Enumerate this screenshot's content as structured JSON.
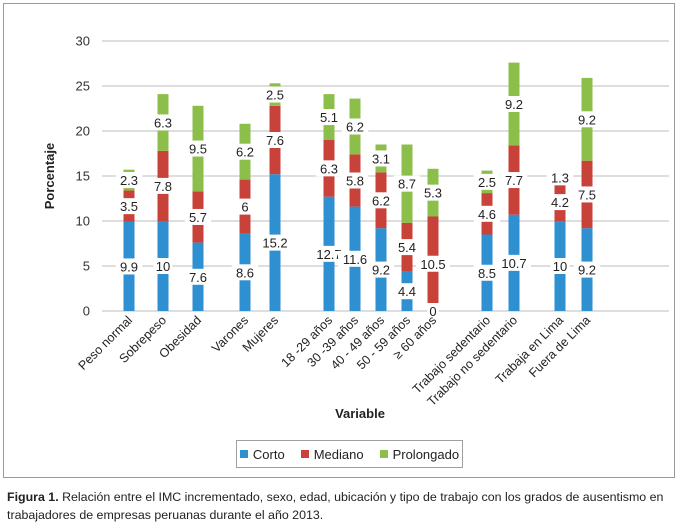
{
  "chart_data": {
    "type": "bar",
    "stacked": true,
    "categories": [
      "Peso normal",
      "Sobrepeso",
      "Obesidad",
      "Varones",
      "Mujeres",
      "18 -29 años",
      "30 -39 años",
      "40 - 49 años",
      "50 - 59 años",
      "≥ 60 años",
      "Trabajo sedentario",
      "Trabajo no sedentario",
      "Trabaja en Lima",
      "Fuera de Lima"
    ],
    "series": [
      {
        "name": "Corto",
        "color": "#2e8fd1",
        "values": [
          9.9,
          10,
          7.6,
          8.6,
          15.2,
          12.7,
          11.6,
          9.2,
          4.4,
          0,
          8.5,
          10.7,
          10,
          9.2
        ],
        "labels": [
          "9.9",
          "10",
          "7.6",
          "8.6",
          "15.2",
          "12.7",
          "11.6",
          "9.2",
          "4.4",
          "0",
          "8.5",
          "10.7",
          "10",
          "9.2"
        ]
      },
      {
        "name": "Mediano",
        "color": "#c9423a",
        "values": [
          3.5,
          7.8,
          5.7,
          6,
          7.6,
          6.3,
          5.8,
          6.2,
          5.4,
          10.5,
          4.6,
          7.7,
          4.2,
          7.5
        ],
        "labels": [
          "3.5",
          "7.8",
          "5.7",
          "6",
          "7.6",
          "6.3",
          "5.8",
          "6.2",
          "5.4",
          "10.5",
          "4.6",
          "7.7",
          "4.2",
          "7.5"
        ]
      },
      {
        "name": "Prolongado",
        "color": "#8cbf4a",
        "values": [
          2.3,
          6.3,
          9.5,
          6.2,
          2.5,
          5.1,
          6.2,
          3.1,
          8.7,
          5.3,
          2.5,
          9.2,
          1.3,
          9.2
        ],
        "labels": [
          "2.3",
          "6.3",
          "9.5",
          "6.2",
          "2.5",
          "5.1",
          "6.2",
          "3.1",
          "8.7",
          "5.3",
          "2.5",
          "9.2",
          "1.3",
          "9.2"
        ]
      }
    ],
    "yticks": [
      "0",
      "5",
      "10",
      "15",
      "20",
      "25",
      "30"
    ],
    "ylim": [
      0,
      30
    ],
    "ylabel": "Porcentaje",
    "xlabel": "Variable",
    "grid": true,
    "legend_position": "bottom"
  },
  "caption": {
    "label": "Figura 1.",
    "text": " Relación entre el IMC incrementado, sexo, edad, ubicación y tipo de trabajo con los grados de ausentismo en trabajadores de empresas peruanas durante el año 2013."
  }
}
